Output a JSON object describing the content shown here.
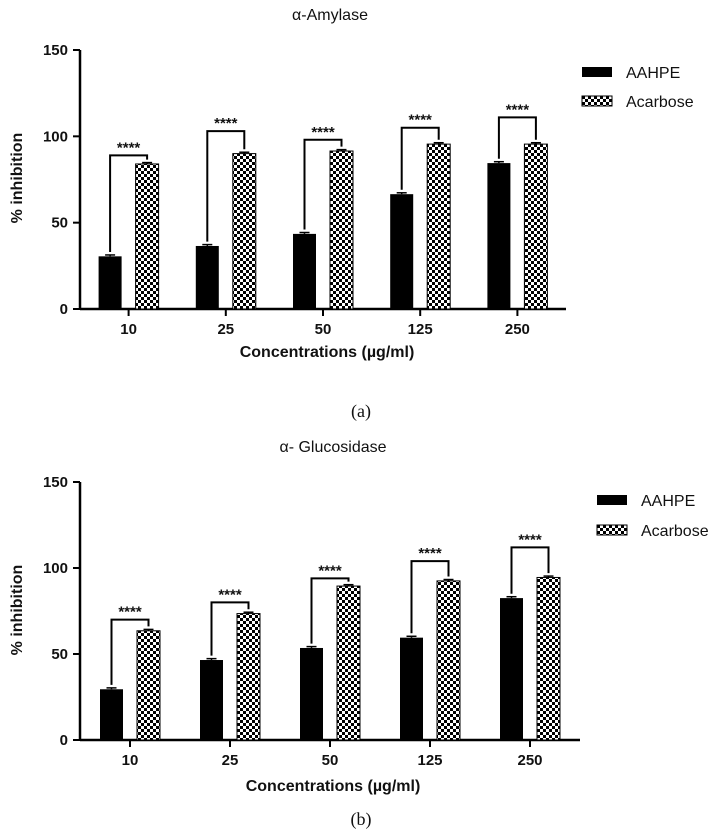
{
  "figure": {
    "panel_labels": [
      "(a)",
      "(b)"
    ]
  },
  "legend": {
    "series_names": [
      "AAHPE",
      "Acarbose"
    ],
    "placement": "top-right"
  },
  "colors": {
    "aahpe": "#000000",
    "acarbose_pattern": "checkerboard black/white",
    "axis": "#000000"
  },
  "chart_data": [
    {
      "type": "bar",
      "title": "α-Amylase",
      "xlabel": "Concentrations (µg/ml)",
      "ylabel": "% inhibition",
      "categories": [
        "10",
        "25",
        "50",
        "125",
        "250"
      ],
      "ylim": [
        0,
        150
      ],
      "yticks": [
        0,
        50,
        100,
        150
      ],
      "grid": false,
      "series": [
        {
          "name": "AAHPE",
          "values": [
            30.5,
            36.5,
            43.5,
            66.5,
            84.5
          ],
          "errors": [
            0.8,
            0.8,
            0.8,
            0.8,
            0.8
          ]
        },
        {
          "name": "Acarbose",
          "values": [
            84,
            90,
            91.5,
            95.5,
            95.5
          ],
          "errors": [
            0.8,
            0.8,
            0.8,
            0.8,
            0.8
          ]
        }
      ],
      "significance": [
        "****",
        "****",
        "****",
        "****",
        "****"
      ],
      "significance_bracket_tops": [
        89,
        103,
        98,
        105,
        111
      ]
    },
    {
      "type": "bar",
      "title": "α- Glucosidase",
      "xlabel": "Concentrations (µg/ml)",
      "ylabel": "% inhibition",
      "categories": [
        "10",
        "25",
        "50",
        "125",
        "250"
      ],
      "ylim": [
        0,
        150
      ],
      "yticks": [
        0,
        50,
        100,
        150
      ],
      "grid": false,
      "series": [
        {
          "name": "AAHPE",
          "values": [
            29.5,
            46.5,
            53.5,
            59.5,
            82.5
          ],
          "errors": [
            0.8,
            0.8,
            0.8,
            0.8,
            0.8
          ]
        },
        {
          "name": "Acarbose",
          "values": [
            63.5,
            73.5,
            89.5,
            92.5,
            94.5
          ],
          "errors": [
            0.8,
            0.8,
            0.8,
            0.8,
            0.8
          ]
        }
      ],
      "significance": [
        "****",
        "****",
        "****",
        "****",
        "****"
      ],
      "significance_bracket_tops": [
        70,
        80,
        94,
        104,
        112
      ]
    }
  ]
}
